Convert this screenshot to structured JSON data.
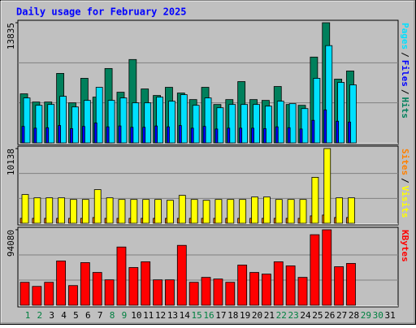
{
  "title": "Daily usage for February 2025",
  "legend_separator": "/",
  "chart_data": [
    {
      "type": "bar",
      "ylim": [
        0,
        13835
      ],
      "yticks": [
        13835
      ],
      "series": [
        {
          "name": "Pages",
          "color": "#00e0ff",
          "values": [
            5176,
            4329,
            4424,
            5365,
            4141,
            4894,
            6400,
            4894,
            5176,
            4612,
            4612,
            5270,
            4800,
            5553,
            4329,
            5176,
            4047,
            4424,
            4424,
            4424,
            4235,
            4800,
            4518,
            3953,
            7435,
            11200,
            6965,
            6682,
            null,
            null,
            null
          ]
        },
        {
          "name": "Files",
          "color": "#0000ff",
          "values": [
            1900,
            1700,
            1750,
            2000,
            1650,
            1900,
            2300,
            1850,
            1950,
            1800,
            1800,
            1950,
            1850,
            2000,
            1700,
            1900,
            1600,
            1700,
            1700,
            1700,
            1650,
            1850,
            1750,
            1600,
            2600,
            3800,
            2500,
            2400,
            null,
            null,
            null
          ]
        },
        {
          "name": "Hits",
          "color": "#00805c",
          "values": [
            5647,
            4706,
            4706,
            8000,
            4612,
            7435,
            5270,
            8565,
            5835,
            9600,
            6212,
            5459,
            6400,
            5741,
            4988,
            6400,
            4424,
            4988,
            7059,
            4988,
            4894,
            6494,
            4424,
            4329,
            9882,
            13835,
            7341,
            8282,
            null,
            null,
            null
          ]
        }
      ]
    },
    {
      "type": "bar",
      "ylim": [
        0,
        10138
      ],
      "yticks": [
        10138
      ],
      "series": [
        {
          "name": "Sites",
          "color": "#ff8000",
          "values": [
            668,
            668,
            668,
            668,
            668,
            668,
            780,
            668,
            668,
            668,
            668,
            668,
            668,
            668,
            668,
            668,
            668,
            668,
            668,
            668,
            668,
            668,
            668,
            668,
            1003,
            1114,
            780,
            780,
            null,
            null,
            null
          ]
        },
        {
          "name": "Visits",
          "color": "#ffff00",
          "values": [
            3899,
            3453,
            3453,
            3453,
            3231,
            3231,
            4567,
            3453,
            3231,
            3231,
            3231,
            3231,
            3119,
            3788,
            3231,
            3119,
            3231,
            3231,
            3231,
            3565,
            3565,
            3231,
            3231,
            3231,
            6238,
            10138,
            3453,
            3453,
            null,
            null,
            null
          ]
        }
      ]
    },
    {
      "type": "bar",
      "ylim": [
        0,
        94080
      ],
      "yticks": [
        94080
      ],
      "categories": [
        "1",
        "2",
        "3",
        "4",
        "5",
        "6",
        "7",
        "8",
        "9",
        "10",
        "11",
        "12",
        "13",
        "14",
        "15",
        "16",
        "17",
        "18",
        "19",
        "20",
        "21",
        "22",
        "23",
        "24",
        "25",
        "26",
        "27",
        "28",
        "29",
        "30",
        "31"
      ],
      "label_colors": [
        "#008040",
        "#008040",
        "#000000",
        "#000000",
        "#000000",
        "#000000",
        "#000000",
        "#008040",
        "#008040",
        "#000000",
        "#000000",
        "#000000",
        "#000000",
        "#000000",
        "#008040",
        "#008040",
        "#000000",
        "#000000",
        "#000000",
        "#000000",
        "#000000",
        "#008040",
        "#008040",
        "#000000",
        "#000000",
        "#000000",
        "#000000",
        "#000000",
        "#008040",
        "#008040",
        "#000000"
      ],
      "series": [
        {
          "name": "KBytes",
          "color": "#ff0000",
          "values": [
            28633,
            23520,
            28633,
            55220,
            24542,
            53175,
            40904,
            31701,
            72605,
            47040,
            54198,
            31701,
            31701,
            74650,
            28633,
            34768,
            32723,
            28633,
            50107,
            40904,
            38859,
            54198,
            49085,
            34768,
            87944,
            94080,
            48062,
            52153,
            null,
            null,
            null
          ]
        }
      ]
    }
  ]
}
